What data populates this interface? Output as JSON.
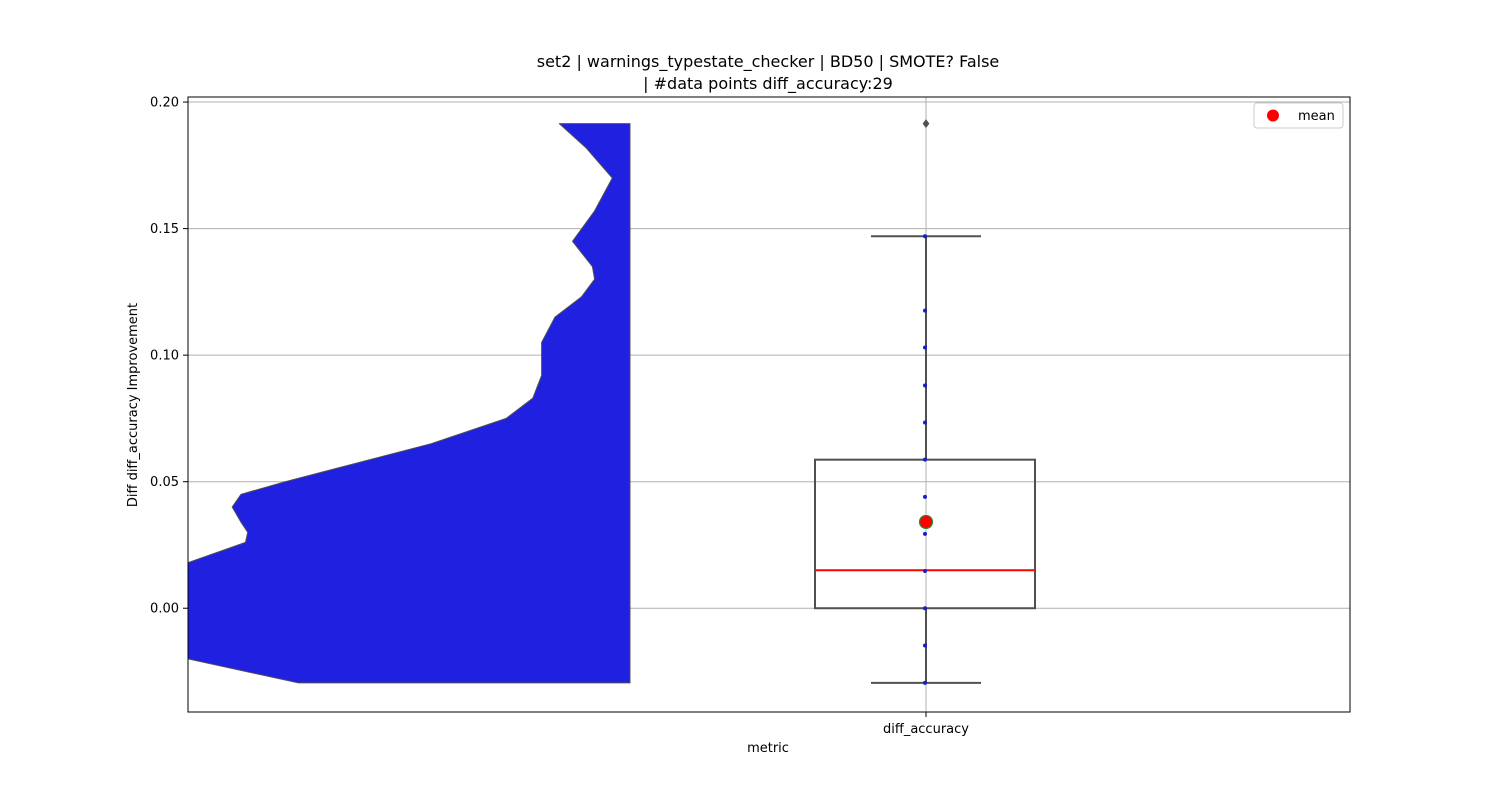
{
  "chart_data": {
    "type": "violin+box",
    "title_line1": "set2 | warnings_typestate_checker | BD50 | SMOTE? False",
    "title_line2": "| #data points diff_accuracy:29",
    "xlabel": "metric",
    "ylabel": "Diff diff_accuracy Improvement",
    "categories": [
      "diff_accuracy"
    ],
    "ylim": [
      -0.041,
      0.202
    ],
    "yticks": [
      0.0,
      0.05,
      0.1,
      0.15,
      0.2
    ],
    "ytick_labels": [
      "0.00",
      "0.05",
      "0.10",
      "0.15",
      "0.20"
    ],
    "grid": true,
    "legend": {
      "position": "top-right",
      "entries": [
        "mean"
      ]
    },
    "colors": {
      "violin_fill": "#2020e0",
      "violin_edge": "#505050",
      "box_edge": "#505050",
      "median": "#ff0000",
      "mean_marker": "#ff0000",
      "mean_marker_edge": "#2e8b2e",
      "points": "#1a1ad0",
      "grid": "#b0b0b0"
    },
    "violin": {
      "y_min": -0.0295,
      "y_max": 0.1915,
      "density_profile": [
        [
          -0.0295,
          0.0
        ],
        [
          -0.0295,
          0.75
        ],
        [
          -0.02,
          1.0
        ],
        [
          0.018,
          1.0
        ],
        [
          0.026,
          0.87
        ],
        [
          0.03,
          0.865
        ],
        [
          0.034,
          0.88
        ],
        [
          0.04,
          0.9
        ],
        [
          0.045,
          0.88
        ],
        [
          0.05,
          0.78
        ],
        [
          0.055,
          0.67
        ],
        [
          0.065,
          0.45
        ],
        [
          0.075,
          0.28
        ],
        [
          0.083,
          0.22
        ],
        [
          0.092,
          0.2
        ],
        [
          0.105,
          0.2
        ],
        [
          0.115,
          0.17
        ],
        [
          0.123,
          0.11
        ],
        [
          0.13,
          0.08
        ],
        [
          0.135,
          0.085
        ],
        [
          0.145,
          0.13
        ],
        [
          0.157,
          0.08
        ],
        [
          0.17,
          0.04
        ],
        [
          0.182,
          0.1
        ],
        [
          0.1915,
          0.16
        ],
        [
          0.1915,
          0.0
        ]
      ]
    },
    "box": {
      "whisker_low": -0.0295,
      "q1": 0.0,
      "median": 0.015,
      "q3": 0.0587,
      "whisker_high": 0.147,
      "mean": 0.0341,
      "outliers": [
        0.1915
      ]
    },
    "points": [
      -0.0295,
      -0.0147,
      0.0,
      0.0147,
      0.0294,
      0.044,
      0.0587,
      0.0734,
      0.088,
      0.103,
      0.1176,
      0.147
    ]
  }
}
